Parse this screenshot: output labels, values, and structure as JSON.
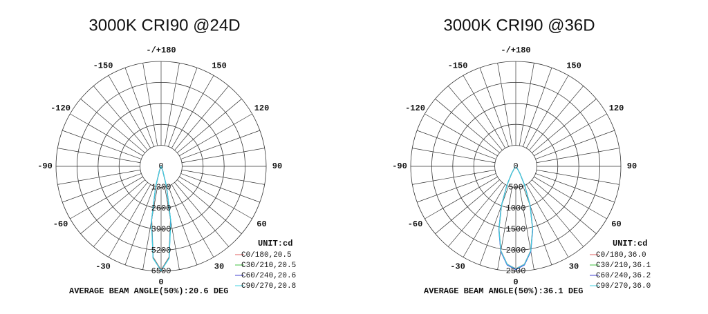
{
  "chart_data": [
    {
      "type": "polar",
      "title": "3000K CRI90 @24D",
      "x": [
        -40,
        -35,
        -30,
        -25,
        -20,
        -15,
        -10,
        -5,
        0,
        5,
        10,
        15,
        20,
        25,
        30,
        35,
        40
      ],
      "series": [
        {
          "name": "C0/180,20.5",
          "color": "#e06060",
          "values": [
            5,
            10,
            20,
            60,
            300,
            1250,
            3350,
            5650,
            6420,
            5650,
            3350,
            1250,
            300,
            60,
            20,
            10,
            5
          ]
        },
        {
          "name": "C30/210,20.5",
          "color": "#40c040",
          "values": [
            5,
            10,
            20,
            60,
            300,
            1270,
            3370,
            5680,
            6450,
            5680,
            3370,
            1270,
            300,
            60,
            20,
            10,
            5
          ]
        },
        {
          "name": "C60/240,20.6",
          "color": "#4040d0",
          "values": [
            5,
            10,
            20,
            60,
            310,
            1290,
            3400,
            5700,
            6460,
            5700,
            3400,
            1290,
            310,
            60,
            20,
            10,
            5
          ]
        },
        {
          "name": "C90/270,20.8",
          "color": "#40d0e0",
          "values": [
            5,
            10,
            20,
            60,
            320,
            1320,
            3450,
            5720,
            6470,
            5720,
            3450,
            1320,
            320,
            60,
            20,
            10,
            5
          ]
        }
      ],
      "rlim": [
        0,
        6500
      ],
      "rticks": [
        0,
        1300,
        2600,
        3900,
        5200,
        6500
      ],
      "xticks": [
        0,
        30,
        60,
        90,
        120,
        150,
        {
          "value": 180,
          "label": "-/+180"
        },
        -150,
        -120,
        -90,
        -60,
        -30
      ],
      "unit_label": "UNIT:cd",
      "footer": "AVERAGE BEAM ANGLE(50%):20.6 DEG"
    },
    {
      "type": "polar",
      "title": "3000K CRI90 @36D",
      "x": [
        -40,
        -35,
        -30,
        -25,
        -20,
        -15,
        -10,
        -5,
        0,
        5,
        10,
        15,
        20,
        25,
        30,
        35,
        40
      ],
      "series": [
        {
          "name": "C0/180,36.0",
          "color": "#e06060",
          "values": [
            20,
            60,
            200,
            500,
            990,
            1540,
            2040,
            2340,
            2440,
            2340,
            2040,
            1540,
            990,
            500,
            200,
            60,
            20
          ]
        },
        {
          "name": "C30/210,36.1",
          "color": "#40c040",
          "values": [
            20,
            60,
            200,
            500,
            1000,
            1550,
            2050,
            2350,
            2450,
            2350,
            2050,
            1550,
            1000,
            500,
            200,
            60,
            20
          ]
        },
        {
          "name": "C60/240,36.2",
          "color": "#4040d0",
          "values": [
            20,
            60,
            200,
            510,
            1010,
            1560,
            2060,
            2360,
            2460,
            2360,
            2060,
            1560,
            1010,
            510,
            200,
            60,
            20
          ]
        },
        {
          "name": "C90/270,36.0",
          "color": "#40d0e0",
          "values": [
            20,
            60,
            200,
            500,
            995,
            1545,
            2045,
            2345,
            2445,
            2345,
            2045,
            1545,
            995,
            500,
            200,
            60,
            20
          ]
        }
      ],
      "rlim": [
        0,
        2500
      ],
      "rticks": [
        0,
        500,
        1000,
        1500,
        2000,
        2500
      ],
      "xticks": [
        0,
        30,
        60,
        90,
        120,
        150,
        {
          "value": 180,
          "label": "-/+180"
        },
        -150,
        -120,
        -90,
        -60,
        -30
      ],
      "unit_label": "UNIT:cd",
      "footer": "AVERAGE BEAM ANGLE(50%):36.1 DEG"
    }
  ]
}
